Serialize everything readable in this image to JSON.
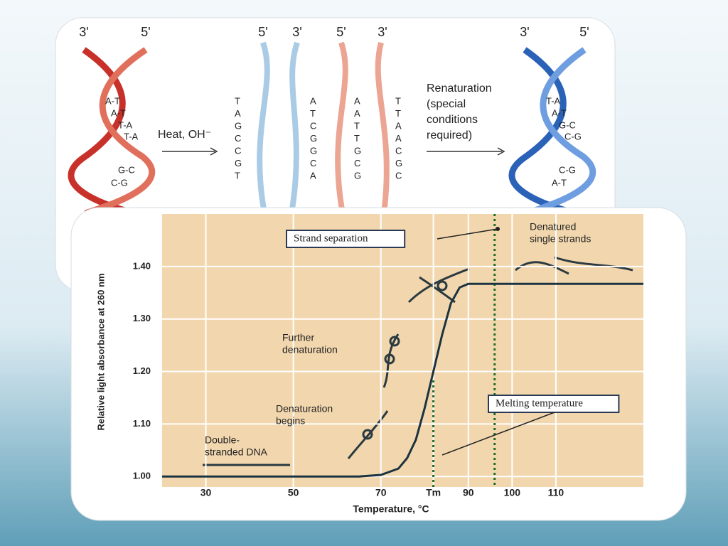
{
  "diagram": {
    "left_helix": {
      "ends": [
        "3'",
        "5'"
      ],
      "pairs": [
        "A-T",
        "A-T",
        "T-A",
        "T-A",
        "G-C",
        "C-G"
      ]
    },
    "heat_label": "Heat, OH⁻",
    "strands": [
      {
        "end": "5'",
        "bases": [
          "T",
          "A",
          "G",
          "C",
          "C",
          "G",
          "T"
        ]
      },
      {
        "end": "3'",
        "bases": [
          "A",
          "T",
          "C",
          "G",
          "G",
          "C",
          "A"
        ]
      },
      {
        "end": "5'",
        "bases": [
          "A",
          "A",
          "T",
          "T",
          "G",
          "C",
          "G"
        ]
      },
      {
        "end": "3'",
        "bases": [
          "T",
          "T",
          "A",
          "A",
          "C",
          "G",
          "C"
        ]
      }
    ],
    "renaturation_label": [
      "Renaturation",
      "(special",
      "conditions",
      "required)"
    ],
    "right_helix": {
      "ends": [
        "3'",
        "5'"
      ],
      "pairs": [
        "T-A",
        "A-T",
        "G-C",
        "C-G",
        "C-G",
        "A-T"
      ]
    }
  },
  "chart_data": {
    "type": "line",
    "x_label": "Temperature, °C",
    "y_label": "Relative light absorbance at 260 nm",
    "x": [
      20,
      65,
      70,
      74,
      76,
      78,
      80,
      82,
      84,
      86,
      88,
      90,
      92,
      130
    ],
    "series": [
      {
        "name": "Absorbance",
        "color": "#1c3340",
        "values": [
          1.0,
          1.0,
          1.003,
          1.015,
          1.035,
          1.07,
          1.13,
          1.2,
          1.27,
          1.33,
          1.36,
          1.367,
          1.367,
          1.367
        ]
      }
    ],
    "xlim": [
      20,
      130
    ],
    "ylim": [
      0.98,
      1.5
    ],
    "xticks": [
      30,
      50,
      70,
      {
        "value": 82,
        "label": "Tm"
      },
      90,
      100,
      110
    ],
    "yticks": [
      {
        "value": 1.0,
        "label": "1.00"
      },
      {
        "value": 1.1,
        "label": "1.10"
      },
      {
        "value": 1.2,
        "label": "1.20"
      },
      {
        "value": 1.3,
        "label": "1.30"
      },
      {
        "value": 1.4,
        "label": "1.40"
      }
    ],
    "vlines": [
      82,
      96
    ],
    "grid": true,
    "annotations": [
      {
        "lines": [
          "Strand separation"
        ]
      },
      {
        "lines": [
          "Denatured",
          "single strands"
        ]
      },
      {
        "lines": [
          "Further",
          "denaturation"
        ]
      },
      {
        "lines": [
          "Denaturation",
          "begins"
        ]
      },
      {
        "lines": [
          "Double-",
          "stranded DNA"
        ]
      },
      {
        "lines": [
          "Melting temperature"
        ]
      }
    ]
  }
}
